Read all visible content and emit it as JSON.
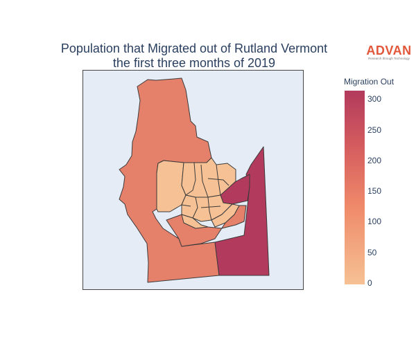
{
  "title": {
    "line1": "Population that Migrated out of Rutland Vermont",
    "line2": "the first three months of 2019"
  },
  "logo": {
    "name": "ADVAN",
    "tagline": "Research through Technology"
  },
  "colorbar": {
    "title": "Migration Out",
    "ticks": [
      "300",
      "250",
      "200",
      "150",
      "100",
      "50",
      "0"
    ],
    "min": 0,
    "max": 315,
    "colors": {
      "low": "#f6c194",
      "mid": "#ef8a6a",
      "high": "#b23a5c"
    }
  },
  "map": {
    "background": "#e5ecf6",
    "border_color": "#444444"
  }
}
